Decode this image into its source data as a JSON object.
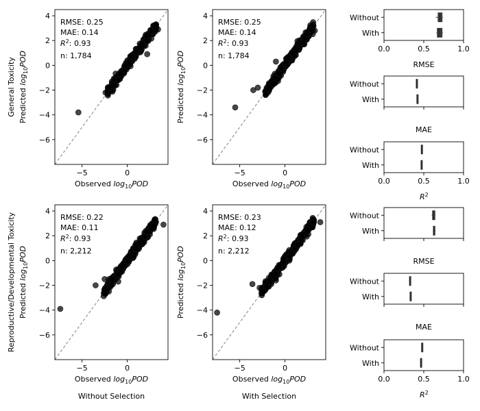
{
  "chart_data": {
    "scatter_panels": [
      {
        "id": "gt-without",
        "type": "scatter",
        "ylabel_top": "General Toxicity",
        "ylabel": "Predicted log10POD",
        "xlabel": "Observed log10POD",
        "column_label": "",
        "xlim": [
          -8,
          4.5
        ],
        "ylim": [
          -8,
          4.5
        ],
        "xticks": [
          -5,
          0
        ],
        "yticks": [
          -6,
          -4,
          -2,
          0,
          2,
          4
        ],
        "stats": {
          "rmse": "RMSE: 0.25",
          "mae": "MAE: 0.14",
          "r2": "0.93",
          "n": "n: 1,784"
        },
        "outliers": [
          [
            -5.4,
            -3.8
          ],
          [
            -2.4,
            -2.2
          ],
          [
            -1.9,
            -1.8
          ],
          [
            2.2,
            0.9
          ],
          [
            3.4,
            2.9
          ]
        ],
        "cloud": {
          "x_range": [
            -2.2,
            3.2
          ],
          "slope": 1.0,
          "intercept": 0.0
        }
      },
      {
        "id": "gt-with",
        "type": "scatter",
        "ylabel_top": "",
        "ylabel": "Predicted log10POD",
        "xlabel": "Observed log10POD",
        "column_label": "",
        "xlim": [
          -8,
          4.5
        ],
        "ylim": [
          -8,
          4.5
        ],
        "xticks": [
          -5,
          0
        ],
        "yticks": [
          -6,
          -4,
          -2,
          0,
          2,
          4
        ],
        "stats": {
          "rmse": "RMSE: 0.25",
          "mae": "MAE: 0.14",
          "r2": "0.93",
          "n": "n: 1,784"
        },
        "outliers": [
          [
            -5.5,
            -3.4
          ],
          [
            -3.5,
            -2.0
          ],
          [
            -3.0,
            -1.8
          ],
          [
            -1.0,
            0.3
          ],
          [
            3.3,
            2.8
          ]
        ],
        "cloud": {
          "x_range": [
            -2.2,
            3.2
          ],
          "slope": 1.0,
          "intercept": 0.0
        }
      },
      {
        "id": "rdt-without",
        "type": "scatter",
        "ylabel_top": "Reproductive/Developmental Toxicity",
        "ylabel": "Predicted log10POD",
        "xlabel": "Observed log10POD",
        "column_label": "Without Selection",
        "xlim": [
          -8,
          4.5
        ],
        "ylim": [
          -8,
          4.5
        ],
        "xticks": [
          -5,
          0
        ],
        "yticks": [
          -6,
          -4,
          -2,
          0,
          2,
          4
        ],
        "stats": {
          "rmse": "RMSE: 0.22",
          "mae": "MAE: 0.11",
          "r2": "0.93",
          "n": "n: 2,212"
        },
        "outliers": [
          [
            -7.4,
            -3.9
          ],
          [
            -3.5,
            -2.0
          ],
          [
            -1.0,
            -1.7
          ],
          [
            4.0,
            2.9
          ],
          [
            -2.5,
            -1.5
          ]
        ],
        "cloud": {
          "x_range": [
            -2.6,
            3.2
          ],
          "slope": 1.0,
          "intercept": 0.0
        }
      },
      {
        "id": "rdt-with",
        "type": "scatter",
        "ylabel_top": "",
        "ylabel": "Predicted log10POD",
        "xlabel": "Observed log10POD",
        "column_label": "With Selection",
        "xlim": [
          -8,
          4.5
        ],
        "ylim": [
          -8,
          4.5
        ],
        "xticks": [
          -5,
          0
        ],
        "yticks": [
          -6,
          -4,
          -2,
          0,
          2,
          4
        ],
        "stats": {
          "rmse": "RMSE: 0.23",
          "mae": "MAE: 0.12",
          "r2": "0.93",
          "n": "n: 2,212"
        },
        "outliers": [
          [
            -7.5,
            -4.2
          ],
          [
            -3.6,
            -1.9
          ],
          [
            -2.8,
            -2.2
          ],
          [
            -1.0,
            -1.6
          ],
          [
            3.9,
            3.1
          ]
        ],
        "cloud": {
          "x_range": [
            -2.6,
            3.2
          ],
          "slope": 1.0,
          "intercept": 0.0
        }
      }
    ],
    "metric_panels": [
      {
        "id": "gt-rmse",
        "type": "box",
        "xlabel": "RMSE",
        "xlim": [
          0,
          1
        ],
        "xticks": [
          "0.0",
          "0.5",
          "1.0"
        ],
        "show_ticks": true,
        "categories": [
          "Without",
          "With"
        ],
        "boxes": [
          {
            "label": "Without",
            "min": 0.65,
            "q1": 0.68,
            "median": 0.7,
            "q3": 0.73,
            "max": 0.74
          },
          {
            "label": "With",
            "min": 0.66,
            "q1": 0.67,
            "median": 0.69,
            "q3": 0.73,
            "max": 0.74
          }
        ]
      },
      {
        "id": "gt-mae",
        "type": "box",
        "xlabel": "MAE",
        "xlim": [
          0,
          1
        ],
        "xticks": [
          "0.0",
          "0.5",
          "1.0"
        ],
        "show_ticks": false,
        "categories": [
          "Without",
          "With"
        ],
        "boxes": [
          {
            "label": "Without",
            "min": 0.4,
            "q1": 0.405,
            "median": 0.41,
            "q3": 0.42,
            "max": 0.425
          },
          {
            "label": "With",
            "min": 0.41,
            "q1": 0.413,
            "median": 0.415,
            "q3": 0.42,
            "max": 0.422
          }
        ]
      },
      {
        "id": "gt-r2",
        "type": "box",
        "xlabel": "R2",
        "xlim": [
          0,
          1
        ],
        "xticks": [
          "0.0",
          "0.5",
          "1.0"
        ],
        "show_ticks": true,
        "categories": [
          "Without",
          "With"
        ],
        "boxes": [
          {
            "label": "Without",
            "min": 0.465,
            "q1": 0.468,
            "median": 0.47,
            "q3": 0.475,
            "max": 0.478
          },
          {
            "label": "With",
            "min": 0.462,
            "q1": 0.465,
            "median": 0.468,
            "q3": 0.472,
            "max": 0.475
          }
        ]
      },
      {
        "id": "rdt-rmse",
        "type": "box",
        "xlabel": "RMSE",
        "xlim": [
          0,
          1
        ],
        "xticks": [
          "0.0",
          "0.5",
          "1.0"
        ],
        "show_ticks": false,
        "categories": [
          "Without",
          "With"
        ],
        "boxes": [
          {
            "label": "Without",
            "min": 0.6,
            "q1": 0.61,
            "median": 0.625,
            "q3": 0.64,
            "max": 0.645
          },
          {
            "label": "With",
            "min": 0.615,
            "q1": 0.62,
            "median": 0.63,
            "q3": 0.64,
            "max": 0.65
          }
        ]
      },
      {
        "id": "rdt-mae",
        "type": "box",
        "xlabel": "MAE",
        "xlim": [
          0,
          1
        ],
        "xticks": [
          "0.0",
          "0.5",
          "1.0"
        ],
        "show_ticks": false,
        "categories": [
          "Without",
          "With"
        ],
        "boxes": [
          {
            "label": "Without",
            "min": 0.315,
            "q1": 0.32,
            "median": 0.325,
            "q3": 0.33,
            "max": 0.335
          },
          {
            "label": "With",
            "min": 0.325,
            "q1": 0.327,
            "median": 0.33,
            "q3": 0.333,
            "max": 0.336
          }
        ]
      },
      {
        "id": "rdt-r2",
        "type": "box",
        "xlabel": "R2",
        "xlim": [
          0,
          1
        ],
        "xticks": [
          "0.0",
          "0.5",
          "1.0"
        ],
        "show_ticks": true,
        "categories": [
          "Without",
          "With"
        ],
        "boxes": [
          {
            "label": "Without",
            "min": 0.47,
            "q1": 0.472,
            "median": 0.475,
            "q3": 0.48,
            "max": 0.483
          },
          {
            "label": "With",
            "min": 0.455,
            "q1": 0.458,
            "median": 0.462,
            "q3": 0.466,
            "max": 0.47
          }
        ]
      }
    ],
    "colors": {
      "points": "#000000",
      "diagonal": "#808080",
      "box": "#3a3a3a"
    }
  }
}
